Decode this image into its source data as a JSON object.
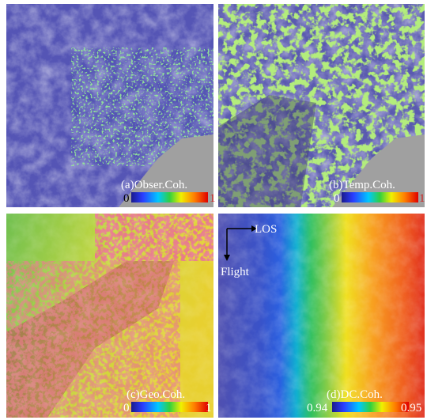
{
  "panels": [
    {
      "label": "(a)Obser.Coh.",
      "colorbar": {
        "min": 0,
        "max": 1
      }
    },
    {
      "label": "(b)Temp.Coh.",
      "colorbar": {
        "min": 0,
        "max": 1
      }
    },
    {
      "label": "(c)Geo.Coh.",
      "colorbar": {
        "min": 0,
        "max": 1
      }
    },
    {
      "label": "(d)DC.Coh.",
      "colorbar": {
        "min": 0.94,
        "max": 0.95
      }
    }
  ],
  "annotations": {
    "los": "LOS",
    "flight": "Flight"
  }
}
